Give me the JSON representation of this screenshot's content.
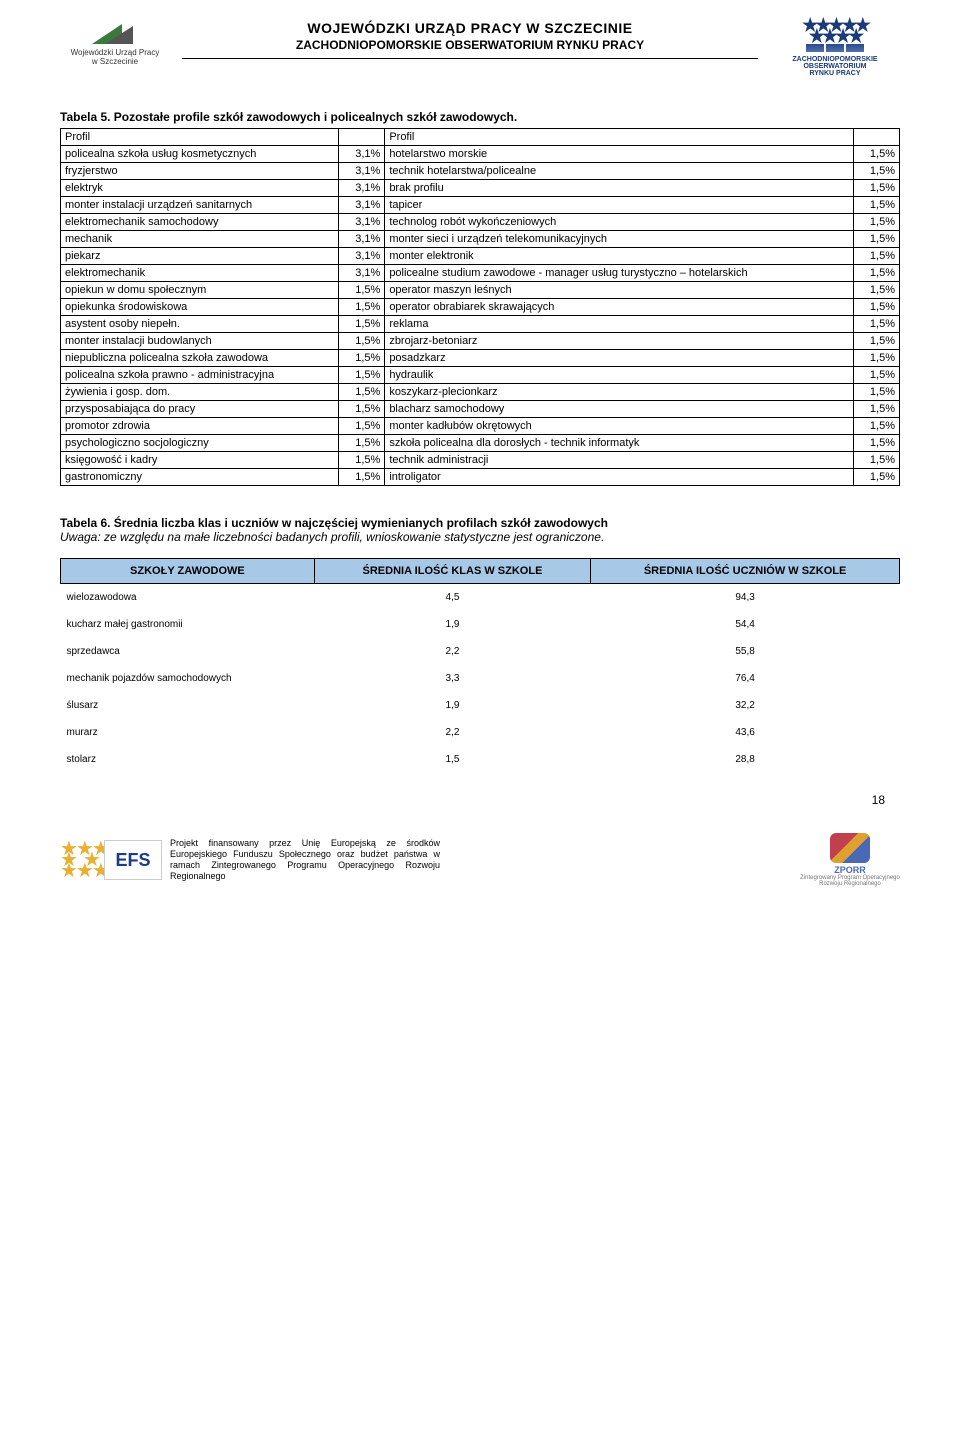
{
  "header": {
    "line1": "WOJEWÓDZKI URZĄD PRACY W SZCZECINIE",
    "line2": "ZACHODNIOPOMORSKIE OBSERWATORIUM RYNKU PRACY",
    "logo_left_caption": "Wojewódzki Urząd Pracy",
    "logo_left_caption2": "w Szczecinie",
    "logo_right_line1": "ZACHODNIOPOMORSKIE",
    "logo_right_line2": "OBSERWATORIUM",
    "logo_right_line3": "RYNKU PRACY"
  },
  "table5": {
    "title": "Tabela 5. Pozostałe profile szkół zawodowych i policealnych szkół zawodowych.",
    "head_left": "Profil",
    "head_right": "Profil",
    "rows": [
      [
        "policealna szkoła usług kosmetycznych",
        "3,1%",
        "hotelarstwo morskie",
        "1,5%"
      ],
      [
        "fryzjerstwo",
        "3,1%",
        "technik hotelarstwa/policealne",
        "1,5%"
      ],
      [
        "elektryk",
        "3,1%",
        "brak profilu",
        "1,5%"
      ],
      [
        "monter instalacji urządzeń sanitarnych",
        "3,1%",
        "tapicer",
        "1,5%"
      ],
      [
        "elektromechanik samochodowy",
        "3,1%",
        "technolog robót wykończeniowych",
        "1,5%"
      ],
      [
        "mechanik",
        "3,1%",
        "monter sieci i urządzeń telekomunikacyjnych",
        "1,5%"
      ],
      [
        "piekarz",
        "3,1%",
        "monter elektronik",
        "1,5%"
      ],
      [
        "elektromechanik",
        "3,1%",
        "policealne studium zawodowe - manager usług turystyczno – hotelarskich",
        "1,5%"
      ],
      [
        "opiekun w domu społecznym",
        "1,5%",
        "operator maszyn leśnych",
        "1,5%"
      ],
      [
        "opiekunka środowiskowa",
        "1,5%",
        "operator obrabiarek skrawających",
        "1,5%"
      ],
      [
        "asystent osoby niepełn.",
        "1,5%",
        "reklama",
        "1,5%"
      ],
      [
        "monter instalacji budowlanych",
        "1,5%",
        "zbrojarz-betoniarz",
        "1,5%"
      ],
      [
        "niepubliczna policealna szkoła zawodowa",
        "1,5%",
        "posadzkarz",
        "1,5%"
      ],
      [
        "policealna szkoła prawno - administracyjna",
        "1,5%",
        "hydraulik",
        "1,5%"
      ],
      [
        "żywienia i gosp. dom.",
        "1,5%",
        "koszykarz-plecionkarz",
        "1,5%"
      ],
      [
        "przysposabiająca do pracy",
        "1,5%",
        "blacharz samochodowy",
        "1,5%"
      ],
      [
        "promotor zdrowia",
        "1,5%",
        "monter kadłubów okrętowych",
        "1,5%"
      ],
      [
        "psychologiczno socjologiczny",
        "1,5%",
        "szkoła policealna dla dorosłych - technik informatyk",
        "1,5%"
      ],
      [
        "księgowość i kadry",
        "1,5%",
        "technik administracji",
        "1,5%"
      ],
      [
        "gastronomiczny",
        "1,5%",
        "introligator",
        "1,5%"
      ]
    ]
  },
  "table6": {
    "title": "Tabela 6. Średnia liczba klas i uczniów w najczęściej wymienianych profilach szkół zawodowych",
    "note": "Uwaga: ze względu na małe liczebności badanych profili, wnioskowanie statystyczne jest ograniczone.",
    "columns": [
      "SZKOŁY ZAWODOWE",
      "ŚREDNIA ILOŚĆ KLAS W SZKOLE",
      "ŚREDNIA ILOŚĆ UCZNIÓW W SZKOLE"
    ],
    "rows": [
      [
        "wielozawodowa",
        "4,5",
        "94,3"
      ],
      [
        "kucharz małej gastronomii",
        "1,9",
        "54,4"
      ],
      [
        "sprzedawca",
        "2,2",
        "55,8"
      ],
      [
        "mechanik pojazdów samochodowych",
        "3,3",
        "76,4"
      ],
      [
        "ślusarz",
        "1,9",
        "32,2"
      ],
      [
        "murarz",
        "2,2",
        "43,6"
      ],
      [
        "stolarz",
        "1,5",
        "28,8"
      ]
    ],
    "header_bg": "#a8c8e8"
  },
  "footer": {
    "efs_label": "EFS",
    "text": "Projekt finansowany przez Unię Europejską ze środków Europejskiego Funduszu Społecznego oraz budżet państwa w ramach Zintegrowanego Programu Operacyjnego Rozwoju Regionalnego",
    "zporr_label": "ZPORR",
    "zporr_sub": "Zintegrowany Program Operacyjnego Rozwoju Regionalnego"
  },
  "page_number": "18"
}
